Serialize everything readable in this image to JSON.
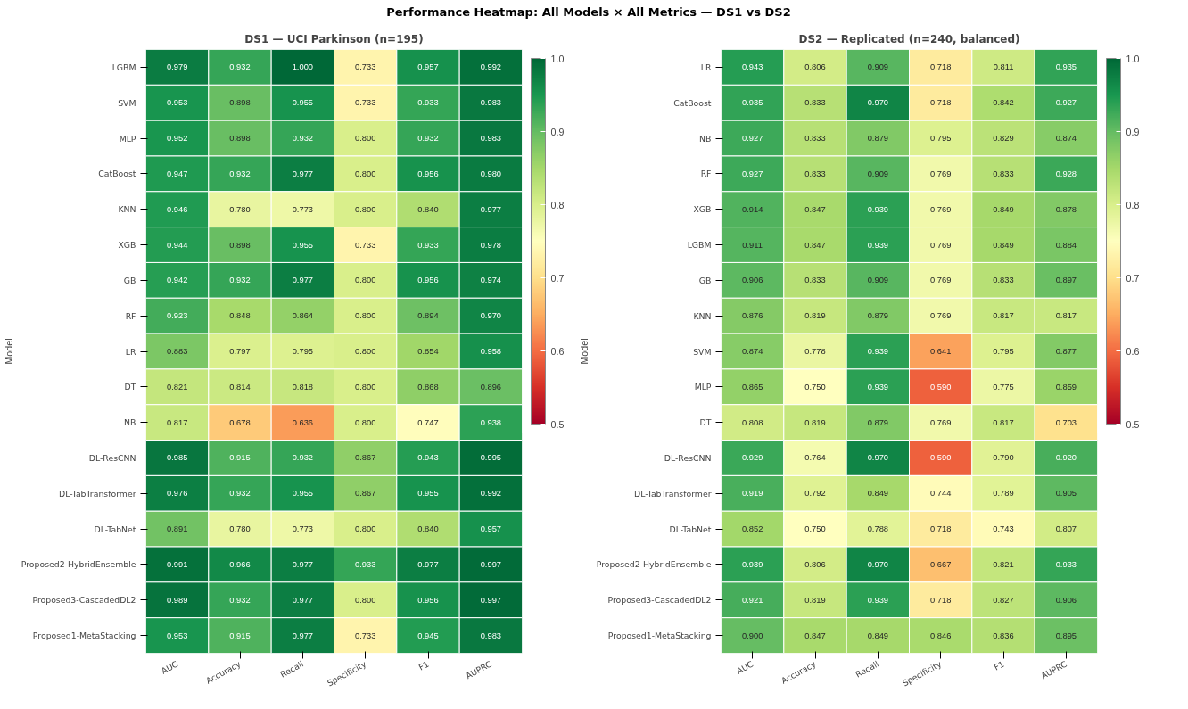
{
  "chart_data": [
    {
      "type": "heatmap",
      "title": "DS1 — UCI Parkinson (n=195)",
      "ylabel": "Model",
      "annotations": [
        "Performance Heatmap: All Models × All Metrics — DS1 vs DS2"
      ],
      "clim": [
        0.5,
        1.0
      ],
      "cticks": [
        0.5,
        0.6,
        0.7,
        0.8,
        0.9,
        {
          "value": 1.0,
          "label": "1.0"
        }
      ],
      "data_labels": true,
      "categories": [
        "AUC",
        "Accuracy",
        "Recall",
        "Specificity",
        "F1",
        "AUPRC"
      ],
      "y_categories": [
        "LGBM",
        "SVM",
        "MLP",
        "CatBoost",
        "KNN",
        "XGB",
        "GB",
        "RF",
        "LR",
        "DT",
        "NB",
        "DL-ResCNN",
        "DL-TabTransformer",
        "DL-TabNet",
        "Proposed2-HybridEnsemble",
        "Proposed3-CascadedDL2",
        "Proposed1-MetaStacking"
      ],
      "cells": [
        [
          0.979,
          0.932,
          1.0,
          0.733,
          0.957,
          0.992
        ],
        [
          0.953,
          0.898,
          0.955,
          0.733,
          0.933,
          0.983
        ],
        [
          0.952,
          0.898,
          0.932,
          0.8,
          0.932,
          0.983
        ],
        [
          0.947,
          0.932,
          0.977,
          0.8,
          0.956,
          0.98
        ],
        [
          0.946,
          0.78,
          0.773,
          0.8,
          0.84,
          0.977
        ],
        [
          0.944,
          0.898,
          0.955,
          0.733,
          0.933,
          0.978
        ],
        [
          0.942,
          0.932,
          0.977,
          0.8,
          0.956,
          0.974
        ],
        [
          0.923,
          0.848,
          0.864,
          0.8,
          0.894,
          0.97
        ],
        [
          0.883,
          0.797,
          0.795,
          0.8,
          0.854,
          0.958
        ],
        [
          0.821,
          0.814,
          0.818,
          0.8,
          0.868,
          0.896
        ],
        [
          0.817,
          0.678,
          0.636,
          0.8,
          0.747,
          0.938
        ],
        [
          0.985,
          0.915,
          0.932,
          0.867,
          0.943,
          0.995
        ],
        [
          0.976,
          0.932,
          0.955,
          0.867,
          0.955,
          0.992
        ],
        [
          0.891,
          0.78,
          0.773,
          0.8,
          0.84,
          0.957
        ],
        [
          0.991,
          0.966,
          0.977,
          0.933,
          0.977,
          0.997
        ],
        [
          0.989,
          0.932,
          0.977,
          0.8,
          0.956,
          0.997
        ],
        [
          0.953,
          0.915,
          0.977,
          0.733,
          0.945,
          0.983
        ]
      ],
      "cell_labels": [
        [
          "0.979",
          "0.932",
          "1.000",
          "0.733",
          "0.957",
          "0.992"
        ],
        [
          "0.953",
          "0.898",
          "0.955",
          "0.733",
          "0.933",
          "0.983"
        ],
        [
          "0.952",
          "0.898",
          "0.932",
          "0.800",
          "0.932",
          "0.983"
        ],
        [
          "0.947",
          "0.932",
          "0.977",
          "0.800",
          "0.956",
          "0.980"
        ],
        [
          "0.946",
          "0.780",
          "0.773",
          "0.800",
          "0.840",
          "0.977"
        ],
        [
          "0.944",
          "0.898",
          "0.955",
          "0.733",
          "0.933",
          "0.978"
        ],
        [
          "0.942",
          "0.932",
          "0.977",
          "0.800",
          "0.956",
          "0.974"
        ],
        [
          "0.923",
          "0.848",
          "0.864",
          "0.800",
          "0.894",
          "0.970"
        ],
        [
          "0.883",
          "0.797",
          "0.795",
          "0.800",
          "0.854",
          "0.958"
        ],
        [
          "0.821",
          "0.814",
          "0.818",
          "0.800",
          "0.868",
          "0.896"
        ],
        [
          "0.817",
          "0.678",
          "0.636",
          "0.800",
          "0.747",
          "0.938"
        ],
        [
          "0.985",
          "0.915",
          "0.932",
          "0.867",
          "0.943",
          "0.995"
        ],
        [
          "0.976",
          "0.932",
          "0.955",
          "0.867",
          "0.955",
          "0.992"
        ],
        [
          "0.891",
          "0.780",
          "0.773",
          "0.800",
          "0.840",
          "0.957"
        ],
        [
          "0.991",
          "0.966",
          "0.977",
          "0.933",
          "0.977",
          "0.997"
        ],
        [
          "0.989",
          "0.932",
          "0.977",
          "0.800",
          "0.956",
          "0.997"
        ],
        [
          "0.953",
          "0.915",
          "0.977",
          "0.733",
          "0.945",
          "0.983"
        ]
      ]
    },
    {
      "type": "heatmap",
      "title": "DS2 — Replicated (n=240, balanced)",
      "ylabel": "Model",
      "clim": [
        0.5,
        1.0
      ],
      "cticks": [
        0.5,
        0.6,
        0.7,
        0.8,
        0.9,
        {
          "value": 1.0,
          "label": "1.0"
        }
      ],
      "data_labels": true,
      "categories": [
        "AUC",
        "Accuracy",
        "Recall",
        "Specificity",
        "F1",
        "AUPRC"
      ],
      "y_categories": [
        "LR",
        "CatBoost",
        "NB",
        "RF",
        "XGB",
        "LGBM",
        "GB",
        "KNN",
        "SVM",
        "MLP",
        "DT",
        "DL-ResCNN",
        "DL-TabTransformer",
        "DL-TabNet",
        "Proposed2-HybridEnsemble",
        "Proposed3-CascadedDL2",
        "Proposed1-MetaStacking"
      ],
      "cells": [
        [
          0.943,
          0.806,
          0.909,
          0.718,
          0.811,
          0.935
        ],
        [
          0.935,
          0.833,
          0.97,
          0.718,
          0.842,
          0.927
        ],
        [
          0.927,
          0.833,
          0.879,
          0.795,
          0.829,
          0.874
        ],
        [
          0.927,
          0.833,
          0.909,
          0.769,
          0.833,
          0.928
        ],
        [
          0.914,
          0.847,
          0.939,
          0.769,
          0.849,
          0.878
        ],
        [
          0.911,
          0.847,
          0.939,
          0.769,
          0.849,
          0.884
        ],
        [
          0.906,
          0.833,
          0.909,
          0.769,
          0.833,
          0.897
        ],
        [
          0.876,
          0.819,
          0.879,
          0.769,
          0.817,
          0.817
        ],
        [
          0.874,
          0.778,
          0.939,
          0.641,
          0.795,
          0.877
        ],
        [
          0.865,
          0.75,
          0.939,
          0.59,
          0.775,
          0.859
        ],
        [
          0.808,
          0.819,
          0.879,
          0.769,
          0.817,
          0.703
        ],
        [
          0.929,
          0.764,
          0.97,
          0.59,
          0.79,
          0.92
        ],
        [
          0.919,
          0.792,
          0.849,
          0.744,
          0.789,
          0.905
        ],
        [
          0.852,
          0.75,
          0.788,
          0.718,
          0.743,
          0.807
        ],
        [
          0.939,
          0.806,
          0.97,
          0.667,
          0.821,
          0.933
        ],
        [
          0.921,
          0.819,
          0.939,
          0.718,
          0.827,
          0.906
        ],
        [
          0.9,
          0.847,
          0.849,
          0.846,
          0.836,
          0.895
        ]
      ],
      "cell_labels": [
        [
          "0.943",
          "0.806",
          "0.909",
          "0.718",
          "0.811",
          "0.935"
        ],
        [
          "0.935",
          "0.833",
          "0.970",
          "0.718",
          "0.842",
          "0.927"
        ],
        [
          "0.927",
          "0.833",
          "0.879",
          "0.795",
          "0.829",
          "0.874"
        ],
        [
          "0.927",
          "0.833",
          "0.909",
          "0.769",
          "0.833",
          "0.928"
        ],
        [
          "0.914",
          "0.847",
          "0.939",
          "0.769",
          "0.849",
          "0.878"
        ],
        [
          "0.911",
          "0.847",
          "0.939",
          "0.769",
          "0.849",
          "0.884"
        ],
        [
          "0.906",
          "0.833",
          "0.909",
          "0.769",
          "0.833",
          "0.897"
        ],
        [
          "0.876",
          "0.819",
          "0.879",
          "0.769",
          "0.817",
          "0.817"
        ],
        [
          "0.874",
          "0.778",
          "0.939",
          "0.641",
          "0.795",
          "0.877"
        ],
        [
          "0.865",
          "0.750",
          "0.939",
          "0.590",
          "0.775",
          "0.859"
        ],
        [
          "0.808",
          "0.819",
          "0.879",
          "0.769",
          "0.817",
          "0.703"
        ],
        [
          "0.929",
          "0.764",
          "0.970",
          "0.590",
          "0.790",
          "0.920"
        ],
        [
          "0.919",
          "0.792",
          "0.849",
          "0.744",
          "0.789",
          "0.905"
        ],
        [
          "0.852",
          "0.750",
          "0.788",
          "0.718",
          "0.743",
          "0.807"
        ],
        [
          "0.939",
          "0.806",
          "0.970",
          "0.667",
          "0.821",
          "0.933"
        ],
        [
          "0.921",
          "0.819",
          "0.939",
          "0.718",
          "0.827",
          "0.906"
        ],
        [
          "0.900",
          "0.847",
          "0.849",
          "0.846",
          "0.836",
          "0.895"
        ]
      ]
    }
  ]
}
